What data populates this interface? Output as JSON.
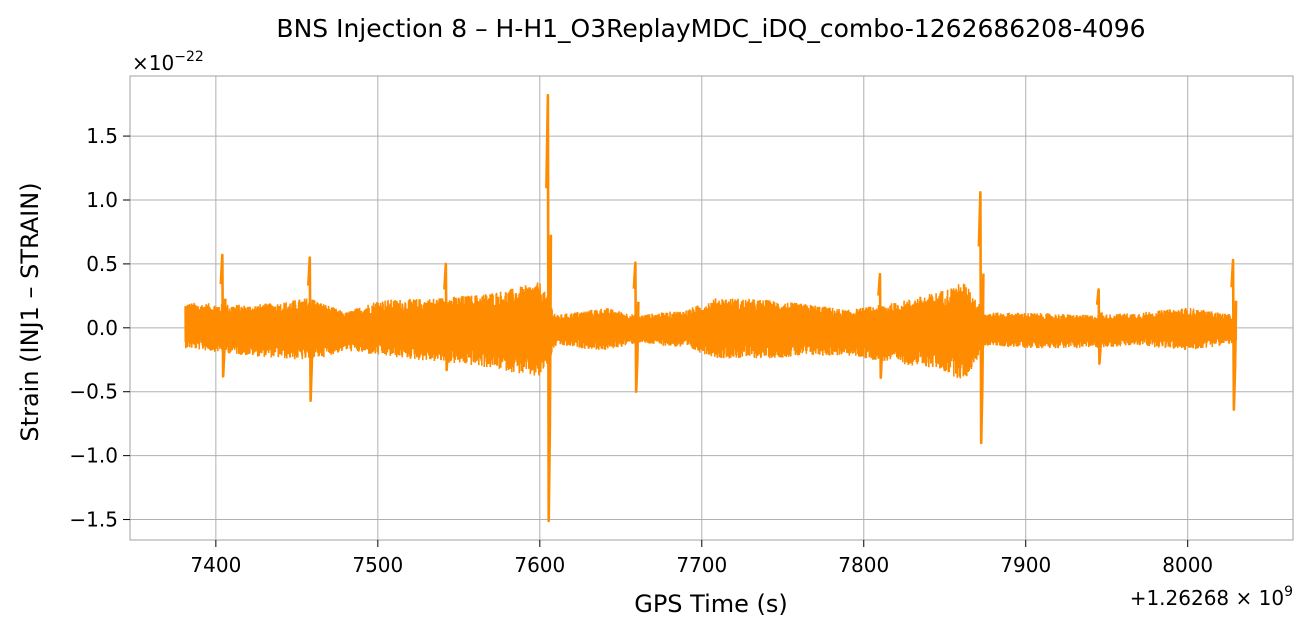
{
  "chart_data": {
    "type": "line",
    "title": "BNS Injection 8 – H-H1_O3ReplayMDC_iDQ_combo-1262686208-4096",
    "xlabel": "GPS Time (s)",
    "ylabel": "Strain (INJ1 – STRAIN)",
    "x_offset_label": "+1.26268 × 10",
    "x_offset_exponent": "9",
    "y_scale_label": "×10",
    "y_scale_exponent": "−22",
    "xlim": [
      7347,
      8065
    ],
    "ylim": [
      -1.66,
      1.97
    ],
    "x_ticks": [
      7400,
      7500,
      7600,
      7700,
      7800,
      7900,
      8000
    ],
    "x_tick_labels": [
      "7400",
      "7500",
      "7600",
      "7700",
      "7800",
      "7900",
      "8000"
    ],
    "y_ticks": [
      -1.5,
      -1.0,
      -0.5,
      0.0,
      0.5,
      1.0,
      1.5
    ],
    "y_tick_labels": [
      "−1.5",
      "−1.0",
      "−0.5",
      "0.0",
      "0.5",
      "1.0",
      "1.5"
    ],
    "grid": true,
    "line_color": "#ff8c00",
    "series": [
      {
        "x_start": 7381,
        "x_end": 8030,
        "envelope_upper": [
          [
            7381,
            0.2
          ],
          [
            7420,
            0.18
          ],
          [
            7440,
            0.2
          ],
          [
            7458,
            0.24
          ],
          [
            7480,
            0.12
          ],
          [
            7500,
            0.22
          ],
          [
            7530,
            0.23
          ],
          [
            7560,
            0.26
          ],
          [
            7580,
            0.3
          ],
          [
            7600,
            0.36
          ],
          [
            7610,
            0.1
          ],
          [
            7640,
            0.16
          ],
          [
            7660,
            0.1
          ],
          [
            7690,
            0.14
          ],
          [
            7710,
            0.24
          ],
          [
            7740,
            0.22
          ],
          [
            7770,
            0.18
          ],
          [
            7790,
            0.14
          ],
          [
            7820,
            0.2
          ],
          [
            7845,
            0.28
          ],
          [
            7862,
            0.36
          ],
          [
            7875,
            0.12
          ],
          [
            7900,
            0.12
          ],
          [
            7940,
            0.1
          ],
          [
            7970,
            0.12
          ],
          [
            8000,
            0.16
          ],
          [
            8030,
            0.1
          ]
        ],
        "envelope_lower": [
          [
            7381,
            -0.16
          ],
          [
            7420,
            -0.22
          ],
          [
            7440,
            -0.24
          ],
          [
            7458,
            -0.26
          ],
          [
            7480,
            -0.18
          ],
          [
            7500,
            -0.22
          ],
          [
            7530,
            -0.26
          ],
          [
            7560,
            -0.3
          ],
          [
            7580,
            -0.34
          ],
          [
            7600,
            -0.4
          ],
          [
            7610,
            -0.14
          ],
          [
            7640,
            -0.18
          ],
          [
            7660,
            -0.12
          ],
          [
            7690,
            -0.16
          ],
          [
            7710,
            -0.24
          ],
          [
            7740,
            -0.24
          ],
          [
            7770,
            -0.22
          ],
          [
            7790,
            -0.22
          ],
          [
            7820,
            -0.28
          ],
          [
            7845,
            -0.32
          ],
          [
            7862,
            -0.42
          ],
          [
            7875,
            -0.14
          ],
          [
            7900,
            -0.16
          ],
          [
            7940,
            -0.16
          ],
          [
            7970,
            -0.14
          ],
          [
            8000,
            -0.18
          ],
          [
            8030,
            -0.12
          ]
        ],
        "glitches": [
          {
            "x": 7404,
            "max": 0.57,
            "min": -0.38
          },
          {
            "x": 7458,
            "max": 0.55,
            "min": -0.57
          },
          {
            "x": 7542,
            "max": 0.5,
            "min": -0.33
          },
          {
            "x": 7605,
            "max": 1.82,
            "min": -1.51
          },
          {
            "x": 7659,
            "max": 0.51,
            "min": -0.5
          },
          {
            "x": 7810,
            "max": 0.42,
            "min": -0.39
          },
          {
            "x": 7872,
            "max": 1.06,
            "min": -0.9
          },
          {
            "x": 7945,
            "max": 0.3,
            "min": -0.28
          },
          {
            "x": 8028,
            "max": 0.53,
            "min": -0.64
          }
        ]
      }
    ]
  }
}
